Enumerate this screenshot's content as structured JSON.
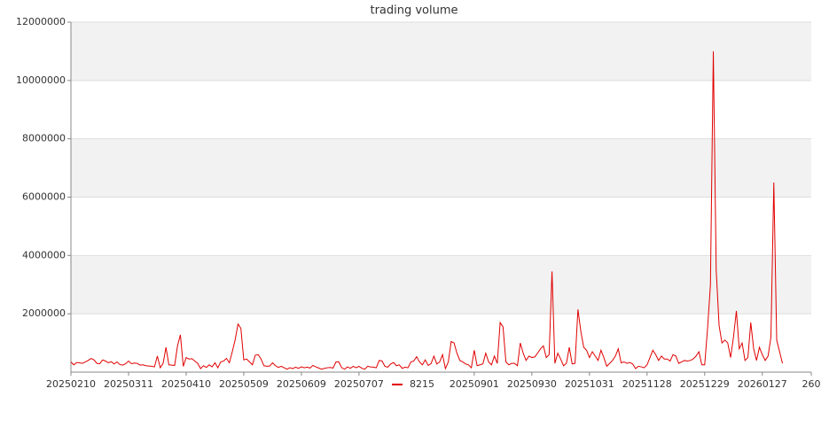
{
  "chart_data": {
    "type": "line",
    "title": "trading volume",
    "series": [
      {
        "name": "8215",
        "color": "#e00000",
        "values": [
          350000,
          250000,
          330000,
          320000,
          300000,
          350000,
          400000,
          470000,
          420000,
          300000,
          290000,
          420000,
          380000,
          320000,
          360000,
          280000,
          350000,
          260000,
          240000,
          290000,
          380000,
          290000,
          310000,
          300000,
          240000,
          250000,
          220000,
          210000,
          200000,
          180000,
          550000,
          150000,
          300000,
          850000,
          250000,
          240000,
          230000,
          900000,
          1280000,
          200000,
          500000,
          450000,
          460000,
          380000,
          300000,
          120000,
          220000,
          160000,
          250000,
          180000,
          320000,
          150000,
          350000,
          380000,
          470000,
          320000,
          700000,
          1100000,
          1650000,
          1500000,
          420000,
          450000,
          350000,
          250000,
          580000,
          600000,
          450000,
          220000,
          200000,
          210000,
          320000,
          220000,
          160000,
          200000,
          150000,
          100000,
          150000,
          120000,
          170000,
          130000,
          180000,
          150000,
          170000,
          140000,
          230000,
          180000,
          140000,
          100000,
          130000,
          150000,
          160000,
          140000,
          350000,
          350000,
          150000,
          100000,
          180000,
          130000,
          200000,
          150000,
          200000,
          130000,
          100000,
          200000,
          180000,
          170000,
          150000,
          400000,
          380000,
          200000,
          170000,
          280000,
          330000,
          220000,
          250000,
          130000,
          170000,
          150000,
          350000,
          380000,
          530000,
          350000,
          250000,
          420000,
          230000,
          290000,
          550000,
          280000,
          350000,
          600000,
          120000,
          350000,
          1050000,
          1000000,
          650000,
          400000,
          350000,
          280000,
          250000,
          150000,
          750000,
          220000,
          250000,
          280000,
          650000,
          350000,
          250000,
          550000,
          300000,
          1700000,
          1550000,
          350000,
          250000,
          300000,
          300000,
          220000,
          1000000,
          650000,
          400000,
          550000,
          500000,
          520000,
          650000,
          800000,
          900000,
          500000,
          600000,
          3450000,
          300000,
          650000,
          450000,
          220000,
          300000,
          850000,
          280000,
          300000,
          2150000,
          1400000,
          850000,
          750000,
          500000,
          700000,
          550000,
          400000,
          750000,
          500000,
          200000,
          300000,
          400000,
          550000,
          800000,
          320000,
          350000,
          300000,
          330000,
          280000,
          120000,
          200000,
          180000,
          150000,
          250000,
          500000,
          750000,
          600000,
          400000,
          550000,
          450000,
          450000,
          380000,
          600000,
          550000,
          300000,
          350000,
          400000,
          380000,
          400000,
          450000,
          550000,
          700000,
          250000,
          250000,
          1500000,
          3000000,
          11000000,
          3500000,
          1600000,
          1000000,
          1100000,
          1000000,
          500000,
          1200000,
          2100000,
          800000,
          1000000,
          400000,
          500000,
          1700000,
          800000,
          400000,
          850000,
          600000,
          400000,
          550000,
          1200000,
          6500000,
          1100000,
          700000,
          300000
        ]
      }
    ],
    "xlim": [
      0,
      257
    ],
    "xticks": [
      {
        "value": 0,
        "label": "20250210"
      },
      {
        "value": 20,
        "label": "20250311"
      },
      {
        "value": 40,
        "label": "20250410"
      },
      {
        "value": 60,
        "label": "20250509"
      },
      {
        "value": 80,
        "label": "20250609"
      },
      {
        "value": 100,
        "label": "20250707"
      },
      {
        "value": 140,
        "label": "20250901"
      },
      {
        "value": 160,
        "label": "20250930"
      },
      {
        "value": 180,
        "label": "20251031"
      },
      {
        "value": 200,
        "label": "20251128"
      },
      {
        "value": 220,
        "label": "20251229"
      },
      {
        "value": 240,
        "label": "20260127"
      },
      {
        "value": 257,
        "label": "260"
      }
    ],
    "ylim": [
      0,
      12000000
    ],
    "yticks": [
      2000000,
      4000000,
      6000000,
      8000000,
      10000000,
      12000000
    ],
    "grid": true
  }
}
